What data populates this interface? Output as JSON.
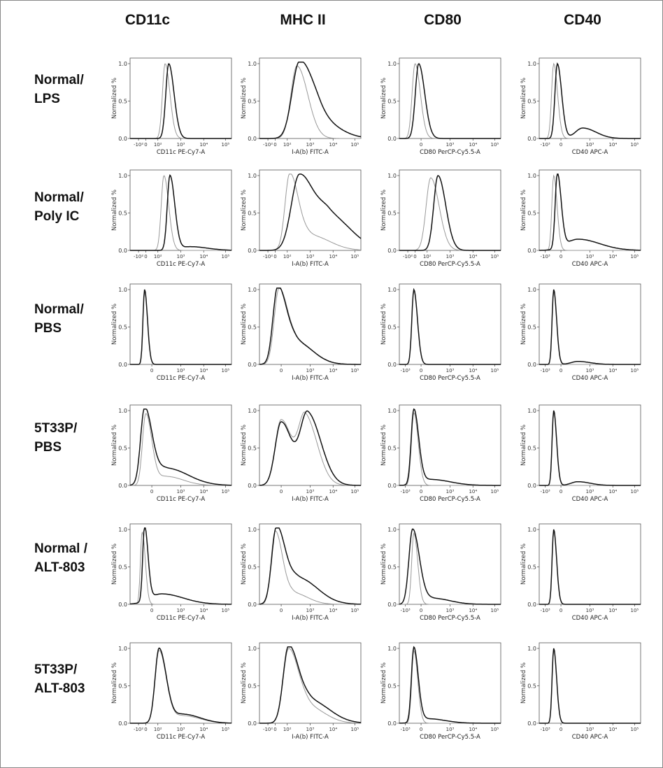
{
  "figure": {
    "column_headers": [
      "CD11c",
      "MHC II",
      "CD80",
      "CD40"
    ],
    "row_labels": [
      [
        "Normal/",
        "LPS"
      ],
      [
        "Normal/",
        "Poly IC"
      ],
      [
        "Normal/",
        "PBS"
      ],
      [
        "5T33P/",
        "PBS"
      ],
      [
        "Normal /",
        "ALT-803"
      ],
      [
        "5T33P/",
        "ALT-803"
      ]
    ],
    "y_axis_label": "Normalized %",
    "y_tick_labels": [
      "1.0",
      "0.5",
      "0.0"
    ],
    "x_axis_labels": [
      "CD11c PE-Cy7-A",
      "I-A(b) FITC-A",
      "CD80 PerCP-Cy5.5-A",
      "CD40 APC-A"
    ],
    "x_tick_sets": {
      "full": [
        "-10²",
        "0",
        "10²",
        "10³",
        "10⁴",
        "10⁵"
      ],
      "zero_only": [
        "0",
        "10³",
        "10⁴",
        "10⁵"
      ],
      "neg3": [
        "-10³",
        "0",
        "10³",
        "10⁴",
        "10⁵"
      ]
    }
  },
  "colors": {
    "treated_line": "#111111",
    "control_line": "#999999",
    "control_fill": "#b8b8b8"
  },
  "chart_data": {
    "type": "line",
    "description_units": "x in log-ish cytometry display units (0 = zero, 1 = 10^2 ... ), y = Normalized % (0-1)",
    "panels": [
      {
        "row": 0,
        "col": 0,
        "x_label": "CD11c PE-Cy7-A",
        "ticks": "full",
        "series": [
          {
            "role": "treated",
            "peaks": [
              [
                1.0,
                1.0,
                0.22
              ]
            ]
          },
          {
            "role": "control",
            "peaks": [
              [
                0.85,
                1.0,
                0.2
              ]
            ]
          }
        ]
      },
      {
        "row": 0,
        "col": 1,
        "x_label": "I-A(b) FITC-A",
        "ticks": "full",
        "series": [
          {
            "role": "treated",
            "peaks": [
              [
                1.05,
                1.0,
                0.55
              ],
              [
                1.9,
                0.22,
                0.8
              ]
            ]
          },
          {
            "role": "control",
            "peaks": [
              [
                0.95,
                0.97,
                0.45
              ]
            ]
          }
        ]
      },
      {
        "row": 0,
        "col": 2,
        "x_label": "CD80 PerCP-Cy5.5-A",
        "ticks": "zero_only",
        "series": [
          {
            "role": "treated",
            "peaks": [
              [
                0.2,
                1.0,
                0.25
              ]
            ]
          },
          {
            "role": "control",
            "peaks": [
              [
                0.05,
                1.0,
                0.22
              ]
            ]
          }
        ]
      },
      {
        "row": 0,
        "col": 3,
        "x_label": "CD40 APC-A",
        "ticks": "neg3",
        "series": [
          {
            "role": "treated",
            "peaks": [
              [
                0.15,
                1.0,
                0.18
              ],
              [
                1.2,
                0.14,
                0.55
              ]
            ]
          },
          {
            "role": "control",
            "peaks": [
              [
                0.0,
                1.0,
                0.16
              ]
            ]
          }
        ]
      },
      {
        "row": 1,
        "col": 0,
        "x_label": "CD11c PE-Cy7-A",
        "ticks": "full",
        "series": [
          {
            "role": "treated",
            "peaks": [
              [
                1.05,
                1.0,
                0.2
              ],
              [
                1.9,
                0.05,
                0.7
              ]
            ]
          },
          {
            "role": "control",
            "peaks": [
              [
                0.8,
                1.0,
                0.2
              ]
            ]
          }
        ]
      },
      {
        "row": 1,
        "col": 1,
        "x_label": "I-A(b) FITC-A",
        "ticks": "full",
        "series": [
          {
            "role": "treated",
            "peaks": [
              [
                1.05,
                1.0,
                0.6
              ],
              [
                2.3,
                0.45,
                0.9
              ]
            ]
          },
          {
            "role": "control",
            "peaks": [
              [
                0.65,
                1.0,
                0.35
              ],
              [
                1.5,
                0.2,
                0.8
              ]
            ]
          }
        ]
      },
      {
        "row": 1,
        "col": 2,
        "x_label": "CD80 PerCP-Cy5.5-A",
        "ticks": "full",
        "series": [
          {
            "role": "treated",
            "peaks": [
              [
                1.0,
                1.0,
                0.32
              ]
            ]
          },
          {
            "role": "control",
            "peaks": [
              [
                0.7,
                0.97,
                0.35
              ]
            ]
          }
        ]
      },
      {
        "row": 1,
        "col": 3,
        "x_label": "CD40 APC-A",
        "ticks": "neg3",
        "series": [
          {
            "role": "treated",
            "peaks": [
              [
                0.15,
                1.0,
                0.16
              ],
              [
                1.0,
                0.15,
                0.9
              ]
            ]
          },
          {
            "role": "control",
            "peaks": [
              [
                0.0,
                1.0,
                0.14
              ]
            ]
          }
        ]
      },
      {
        "row": 2,
        "col": 0,
        "x_label": "CD11c PE-Cy7-A",
        "ticks": "zero_only",
        "series": [
          {
            "role": "treated",
            "peaks": [
              [
                0.0,
                1.0,
                0.12
              ]
            ]
          },
          {
            "role": "control",
            "peaks": [
              [
                0.0,
                0.98,
                0.12
              ]
            ]
          }
        ]
      },
      {
        "row": 2,
        "col": 1,
        "x_label": "I-A(b) FITC-A",
        "ticks": "zero_only",
        "series": [
          {
            "role": "treated",
            "peaks": [
              [
                0.15,
                1.0,
                0.35
              ],
              [
                0.9,
                0.3,
                0.7
              ]
            ]
          },
          {
            "role": "control",
            "peaks": [
              [
                0.2,
                0.97,
                0.35
              ],
              [
                0.95,
                0.28,
                0.7
              ]
            ]
          }
        ]
      },
      {
        "row": 2,
        "col": 2,
        "x_label": "CD80 PerCP-Cy5.5-A",
        "ticks": "neg3",
        "series": [
          {
            "role": "treated",
            "peaks": [
              [
                0.0,
                1.0,
                0.15
              ]
            ]
          },
          {
            "role": "control",
            "peaks": [
              [
                0.0,
                0.98,
                0.15
              ]
            ]
          }
        ]
      },
      {
        "row": 2,
        "col": 3,
        "x_label": "CD40 APC-A",
        "ticks": "neg3",
        "series": [
          {
            "role": "treated",
            "peaks": [
              [
                0.0,
                1.0,
                0.12
              ],
              [
                1.0,
                0.04,
                0.5
              ]
            ]
          },
          {
            "role": "control",
            "peaks": [
              [
                0.0,
                0.98,
                0.12
              ]
            ]
          }
        ]
      },
      {
        "row": 3,
        "col": 0,
        "x_label": "CD11c PE-Cy7-A",
        "ticks": "zero_only",
        "series": [
          {
            "role": "treated",
            "peaks": [
              [
                0.0,
                1.0,
                0.3
              ],
              [
                0.9,
                0.23,
                0.9
              ]
            ]
          },
          {
            "role": "control",
            "peaks": [
              [
                0.05,
                0.95,
                0.25
              ],
              [
                0.9,
                0.12,
                0.7
              ]
            ]
          }
        ]
      },
      {
        "row": 3,
        "col": 1,
        "x_label": "I-A(b) FITC-A",
        "ticks": "zero_only",
        "series": [
          {
            "role": "treated",
            "peaks": [
              [
                0.3,
                0.85,
                0.45
              ],
              [
                1.4,
                0.95,
                0.55
              ]
            ]
          },
          {
            "role": "control",
            "peaks": [
              [
                0.3,
                0.88,
                0.45
              ],
              [
                1.3,
                0.9,
                0.5
              ]
            ]
          }
        ]
      },
      {
        "row": 3,
        "col": 2,
        "x_label": "CD80 PerCP-Cy5.5-A",
        "ticks": "neg3",
        "series": [
          {
            "role": "treated",
            "peaks": [
              [
                0.0,
                1.0,
                0.2
              ],
              [
                0.7,
                0.08,
                0.8
              ]
            ]
          },
          {
            "role": "control",
            "peaks": [
              [
                0.0,
                0.97,
                0.18
              ]
            ]
          }
        ]
      },
      {
        "row": 3,
        "col": 3,
        "x_label": "CD40 APC-A",
        "ticks": "neg3",
        "series": [
          {
            "role": "treated",
            "peaks": [
              [
                0.0,
                1.0,
                0.12
              ],
              [
                1.0,
                0.05,
                0.5
              ]
            ]
          },
          {
            "role": "control",
            "peaks": [
              [
                0.0,
                0.98,
                0.12
              ]
            ]
          }
        ]
      },
      {
        "row": 4,
        "col": 0,
        "x_label": "CD11c PE-Cy7-A",
        "ticks": "zero_only",
        "series": [
          {
            "role": "treated",
            "peaks": [
              [
                0.0,
                1.0,
                0.14
              ],
              [
                0.7,
                0.14,
                0.9
              ]
            ]
          },
          {
            "role": "control",
            "peaks": [
              [
                -0.1,
                0.97,
                0.13
              ]
            ]
          }
        ]
      },
      {
        "row": 4,
        "col": 1,
        "x_label": "I-A(b) FITC-A",
        "ticks": "zero_only",
        "series": [
          {
            "role": "treated",
            "peaks": [
              [
                0.1,
                1.0,
                0.35
              ],
              [
                1.0,
                0.35,
                0.8
              ]
            ]
          },
          {
            "role": "control",
            "peaks": [
              [
                0.05,
                0.97,
                0.3
              ],
              [
                0.8,
                0.15,
                0.6
              ]
            ]
          }
        ]
      },
      {
        "row": 4,
        "col": 2,
        "x_label": "CD80 PerCP-Cy5.5-A",
        "ticks": "neg3",
        "series": [
          {
            "role": "treated",
            "peaks": [
              [
                -0.05,
                1.0,
                0.28
              ],
              [
                0.8,
                0.08,
                0.7
              ]
            ]
          },
          {
            "role": "control",
            "peaks": [
              [
                0.0,
                0.95,
                0.16
              ]
            ]
          }
        ]
      },
      {
        "row": 4,
        "col": 3,
        "x_label": "CD40 APC-A",
        "ticks": "neg3",
        "series": [
          {
            "role": "treated",
            "peaks": [
              [
                0.0,
                1.0,
                0.12
              ]
            ]
          },
          {
            "role": "control",
            "peaks": [
              [
                0.0,
                0.98,
                0.12
              ]
            ]
          }
        ]
      },
      {
        "row": 5,
        "col": 0,
        "x_label": "CD11c PE-Cy7-A",
        "ticks": "full",
        "series": [
          {
            "role": "treated",
            "peaks": [
              [
                0.6,
                1.0,
                0.3
              ],
              [
                1.6,
                0.12,
                0.7
              ]
            ]
          },
          {
            "role": "control",
            "peaks": [
              [
                0.6,
                0.97,
                0.3
              ],
              [
                1.6,
                0.1,
                0.7
              ]
            ]
          }
        ]
      },
      {
        "row": 5,
        "col": 1,
        "x_label": "I-A(b) FITC-A",
        "ticks": "full",
        "series": [
          {
            "role": "treated",
            "peaks": [
              [
                0.6,
                1.0,
                0.4
              ],
              [
                1.5,
                0.3,
                0.8
              ]
            ]
          },
          {
            "role": "control",
            "peaks": [
              [
                0.6,
                0.97,
                0.4
              ],
              [
                1.4,
                0.22,
                0.7
              ]
            ]
          }
        ]
      },
      {
        "row": 5,
        "col": 2,
        "x_label": "CD80 PerCP-Cy5.5-A",
        "ticks": "neg3",
        "series": [
          {
            "role": "treated",
            "peaks": [
              [
                0.0,
                1.0,
                0.18
              ],
              [
                0.6,
                0.06,
                0.7
              ]
            ]
          },
          {
            "role": "control",
            "peaks": [
              [
                0.0,
                0.97,
                0.16
              ]
            ]
          }
        ]
      },
      {
        "row": 5,
        "col": 3,
        "x_label": "CD40 APC-A",
        "ticks": "neg3",
        "series": [
          {
            "role": "treated",
            "peaks": [
              [
                0.0,
                1.0,
                0.12
              ]
            ]
          },
          {
            "role": "control",
            "peaks": [
              [
                0.0,
                0.98,
                0.12
              ]
            ]
          }
        ]
      }
    ]
  }
}
